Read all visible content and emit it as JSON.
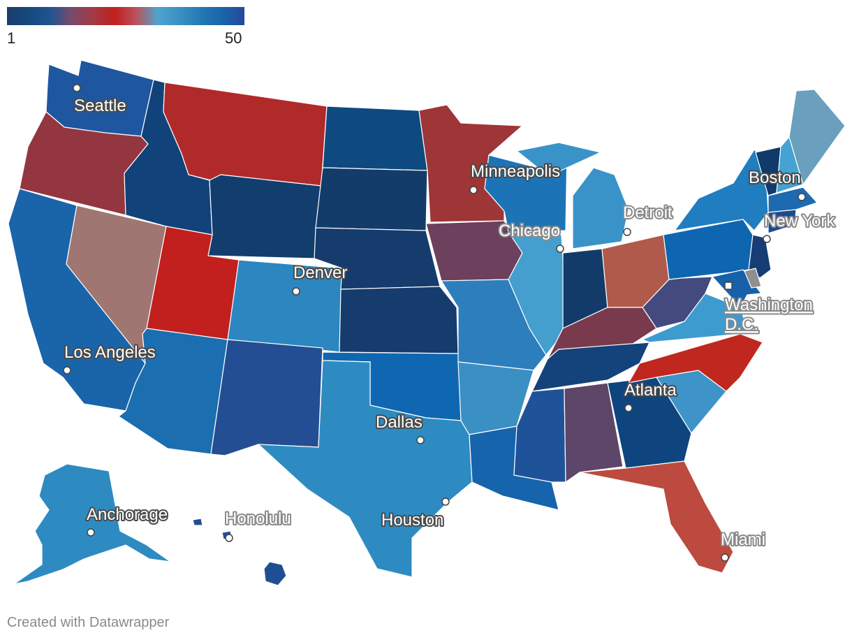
{
  "legend": {
    "min_label": "1",
    "max_label": "50",
    "gradient": [
      "#1a3d6e",
      "#16497e",
      "#1f5591",
      "#7a4a6a",
      "#a33a45",
      "#c1201e",
      "#b8545d",
      "#4fa3cf",
      "#3a90c2",
      "#2478b4",
      "#1a64aa",
      "#27489a"
    ]
  },
  "footer": "Created with Datawrapper",
  "cities": {
    "seattle": "Seattle",
    "minneapolis": "Minneapolis",
    "boston": "Boston",
    "detroit": "Detroit",
    "chicago": "Chicago",
    "new_york": "New York",
    "denver": "Denver",
    "washington_line1": "Washington",
    "washington_line2": "D.C.",
    "los_angeles": "Los Angeles",
    "atlanta": "Atlanta",
    "dallas": "Dallas",
    "anchorage": "Anchorage",
    "honolulu": "Honolulu",
    "houston": "Houston",
    "miami": "Miami"
  },
  "state_colors": {
    "WA": "#1f56a0",
    "OR": "#93363f",
    "CA": "#1a64aa",
    "NV": "#a07672",
    "ID": "#12427a",
    "MT": "#b02a2a",
    "WY": "#123e6e",
    "UT": "#c21f1f",
    "CO": "#2c86bf",
    "AZ": "#1b6eb0",
    "NM": "#234e93",
    "ND": "#0e4a80",
    "SD": "#133c6a",
    "NE": "#163c6d",
    "KS": "#163c6d",
    "OK": "#0f67b1",
    "TX": "#2d8bc2",
    "MN": "#9e3537",
    "IA": "#6d405e",
    "MO": "#2c7ebd",
    "AR": "#3a8fc3",
    "LA": "#1664ab",
    "WI": "#1c74b7",
    "IL": "#449fce",
    "MI": "#3a93c8",
    "IN": "#123b6a",
    "OH": "#b05a4b",
    "KY": "#7a3a4d",
    "TN": "#14427a",
    "MS": "#1e539a",
    "AL": "#5e4668",
    "GA": "#0e457f",
    "FL": "#bc4a3f",
    "SC": "#3e94c8",
    "NC": "#c0281f",
    "VA": "#3e9bd0",
    "WV": "#434a7e",
    "PA": "#0e66b1",
    "NY": "#1f7dc0",
    "VT": "#0f3a6a",
    "NH": "#43a3d3",
    "ME": "#6a9fbd",
    "MA": "#1d6ab0",
    "CT": "#1c4a90",
    "NJ": "#173e74",
    "MD": "#1760aa",
    "DE": "#1c74b7",
    "DC": "#8f8f8f",
    "AK": "#2d8bc2",
    "HI": "#1f4f92"
  }
}
